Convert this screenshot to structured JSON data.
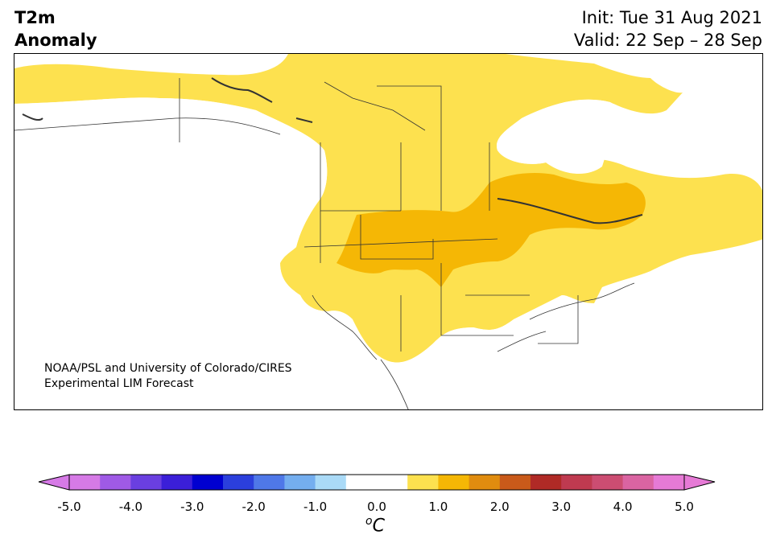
{
  "title": {
    "line1": "T2m",
    "line2": "Anomaly"
  },
  "dates": {
    "init": "Init: Tue 31 Aug 2021",
    "valid": "Valid: 22 Sep – 28 Sep"
  },
  "credit": {
    "line1": "NOAA/PSL and University of Colorado/CIRES",
    "line2": "Experimental LIM Forecast"
  },
  "colorbar": {
    "unit_sup": "o",
    "unit": "C",
    "ticks": [
      "-5.0",
      "-4.0",
      "-3.0",
      "-2.0",
      "-1.0",
      "0.0",
      "1.0",
      "2.0",
      "3.0",
      "4.0",
      "5.0"
    ],
    "colors": [
      "#d67ae6",
      "#9f5ae6",
      "#6a3fe0",
      "#3b1fd8",
      "#0000d0",
      "#2b3fdc",
      "#4f78e8",
      "#74aeef",
      "#aadaf7",
      "#ffffff",
      "#ffffff",
      "#fde14f",
      "#f5b705",
      "#e08c0f",
      "#c95a1a",
      "#b02a26",
      "#bf3a50",
      "#cc4d72",
      "#da64a2",
      "#e67ad6"
    ],
    "extend_low": "#d67ae6",
    "extend_high": "#e67ad6"
  },
  "map": {
    "region": "North America",
    "anomaly_colors": {
      "0.5-1.0": "#fde14f",
      "1.0-1.5": "#f5b705"
    }
  }
}
